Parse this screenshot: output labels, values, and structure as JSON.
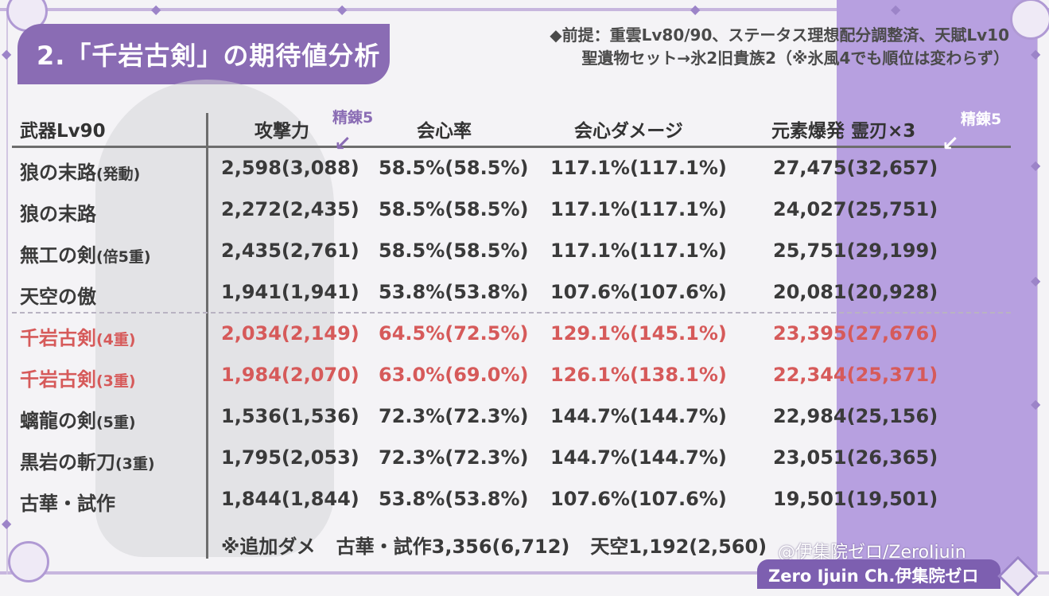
{
  "title": "2.「千岩古剣」の期待値分析",
  "premise": {
    "line1": "◆前提：重雲Lv80/90、ステータス理想配分調整済、天賦Lv10",
    "line2": "聖遺物セット→氷2旧貴族2（※氷風4でも順位は変わらず）"
  },
  "headers": {
    "weapon": "武器Lv90",
    "atk": "攻撃力",
    "crit_rate": "会心率",
    "crit_dmg": "会心ダメージ",
    "burst": "元素爆発 霊刃×3"
  },
  "refine_labels": {
    "atk": "精錬5",
    "burst": "精錬5"
  },
  "rows": [
    {
      "name": "狼の末路",
      "suffix": "(発動)",
      "atk": "2,598(3,088)",
      "crit_rate": "58.5%(58.5%)",
      "crit_dmg": "117.1%(117.1%)",
      "burst": "27,475(32,657)",
      "highlight": false
    },
    {
      "name": "狼の末路",
      "suffix": "",
      "atk": "2,272(2,435)",
      "crit_rate": "58.5%(58.5%)",
      "crit_dmg": "117.1%(117.1%)",
      "burst": "24,027(25,751)",
      "highlight": false
    },
    {
      "name": "無工の剣",
      "suffix": "(倍5重)",
      "atk": "2,435(2,761)",
      "crit_rate": "58.5%(58.5%)",
      "crit_dmg": "117.1%(117.1%)",
      "burst": "25,751(29,199)",
      "highlight": false
    },
    {
      "name": "天空の傲",
      "suffix": "",
      "atk": "1,941(1,941)",
      "crit_rate": "53.8%(53.8%)",
      "crit_dmg": "107.6%(107.6%)",
      "burst": "20,081(20,928)",
      "highlight": false
    },
    {
      "name": "千岩古剣",
      "suffix": "(4重)",
      "atk": "2,034(2,149)",
      "crit_rate": "64.5%(72.5%)",
      "crit_dmg": "129.1%(145.1%)",
      "burst": "23,395(27,676)",
      "highlight": true
    },
    {
      "name": "千岩古剣",
      "suffix": "(3重)",
      "atk": "1,984(2,070)",
      "crit_rate": "63.0%(69.0%)",
      "crit_dmg": "126.1%(138.1%)",
      "burst": "22,344(25,371)",
      "highlight": true
    },
    {
      "name": "螭龍の剣",
      "suffix": "(5重)",
      "atk": "1,536(1,536)",
      "crit_rate": "72.3%(72.3%)",
      "crit_dmg": "144.7%(144.7%)",
      "burst": "22,984(25,156)",
      "highlight": false
    },
    {
      "name": "黒岩の斬刀",
      "suffix": "(3重)",
      "atk": "1,795(2,053)",
      "crit_rate": "72.3%(72.3%)",
      "crit_dmg": "144.7%(144.7%)",
      "burst": "23,051(26,365)",
      "highlight": false
    },
    {
      "name": "古華・試作",
      "suffix": "",
      "atk": "1,844(1,844)",
      "crit_rate": "53.8%(53.8%)",
      "crit_dmg": "107.6%(107.6%)",
      "burst": "19,501(19,501)",
      "highlight": false
    }
  ],
  "note": {
    "prefix": "※追加ダメ",
    "item1": "古華・試作3,356(6,712)",
    "item2": "天空1,192(2,560)"
  },
  "watermark": "@伊集院ゼロ/ZeroIjuin",
  "channel": "Zero Ijuin Ch.伊集院ゼロ",
  "colors": {
    "accent": "#8a6cb4",
    "band": "#b7a0e0",
    "highlight": "#d65a5a"
  }
}
